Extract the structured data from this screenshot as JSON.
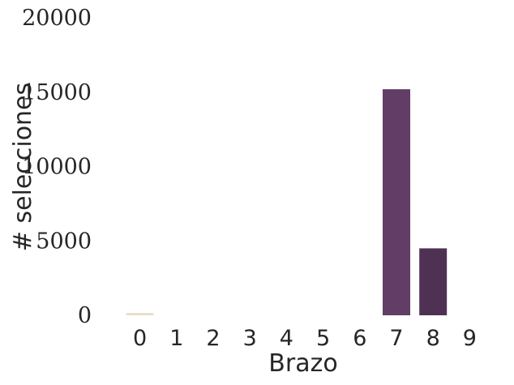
{
  "chart_data": {
    "type": "bar",
    "categories": [
      "0",
      "1",
      "2",
      "3",
      "4",
      "5",
      "6",
      "7",
      "8",
      "9"
    ],
    "values": [
      150,
      0,
      0,
      0,
      0,
      0,
      0,
      15200,
      4500,
      0
    ],
    "colors": [
      "#e8dccb",
      "#d9c3ba",
      "#c7a5a8",
      "#b28897",
      "#9b6c88",
      "#845880",
      "#704a72",
      "#623e66",
      "#4f3253",
      "#3b2640"
    ],
    "xlabel": "Brazo",
    "ylabel": "# selecciones",
    "ylim": [
      0,
      20000
    ],
    "yticks": [
      "0",
      "5000",
      "10000",
      "15000",
      "20000"
    ],
    "grid": false
  }
}
